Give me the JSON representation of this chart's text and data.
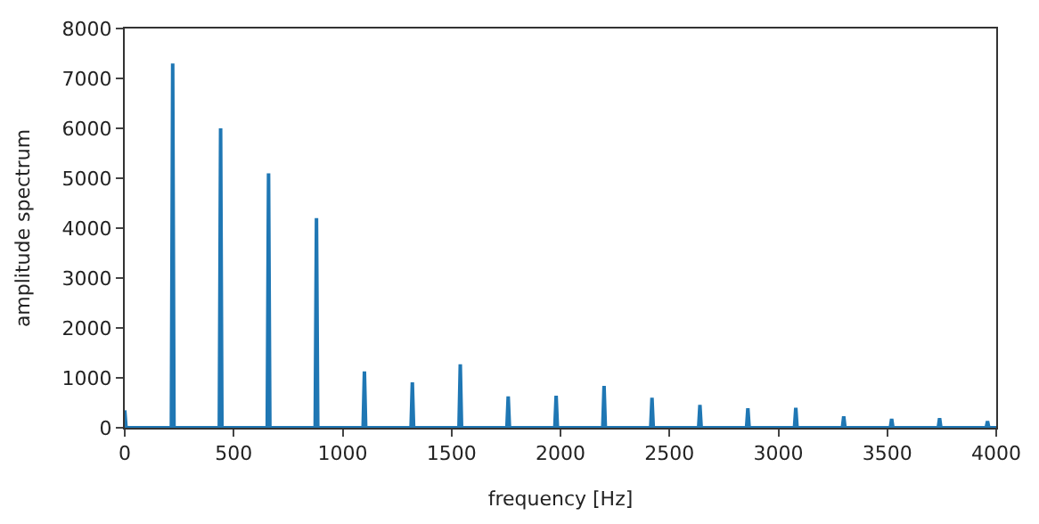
{
  "chart_data": {
    "type": "line",
    "xlabel": "frequency [Hz]",
    "ylabel": "amplitude spectrum",
    "series": [
      {
        "color": "#1f77b4",
        "x": [
          0,
          6,
          214,
          220,
          226,
          434,
          440,
          446,
          654,
          660,
          666,
          874,
          880,
          886,
          1094,
          1100,
          1106,
          1314,
          1320,
          1326,
          1534,
          1540,
          1546,
          1754,
          1760,
          1766,
          1974,
          1980,
          1986,
          2194,
          2200,
          2206,
          2414,
          2420,
          2426,
          2634,
          2640,
          2646,
          2854,
          2860,
          2866,
          3074,
          3080,
          3086,
          3294,
          3300,
          3306,
          3514,
          3520,
          3526,
          3734,
          3740,
          3746,
          3954,
          3960,
          3966,
          4000
        ],
        "values": [
          350,
          0,
          0,
          7300,
          0,
          0,
          6000,
          0,
          0,
          5100,
          0,
          0,
          4200,
          0,
          0,
          1130,
          0,
          0,
          910,
          0,
          0,
          1270,
          0,
          0,
          630,
          0,
          0,
          640,
          0,
          0,
          840,
          0,
          0,
          600,
          0,
          0,
          460,
          0,
          0,
          390,
          0,
          0,
          400,
          0,
          0,
          230,
          0,
          0,
          180,
          0,
          0,
          190,
          0,
          0,
          130,
          0,
          0
        ]
      }
    ],
    "xlim": [
      0,
      4000
    ],
    "xticks": [
      0,
      500,
      1000,
      1500,
      2000,
      2500,
      3000,
      3500,
      4000
    ],
    "ylim": [
      0,
      8000
    ],
    "yticks": [
      0,
      1000,
      2000,
      3000,
      4000,
      5000,
      6000,
      7000,
      8000
    ],
    "line_style": "solid"
  }
}
